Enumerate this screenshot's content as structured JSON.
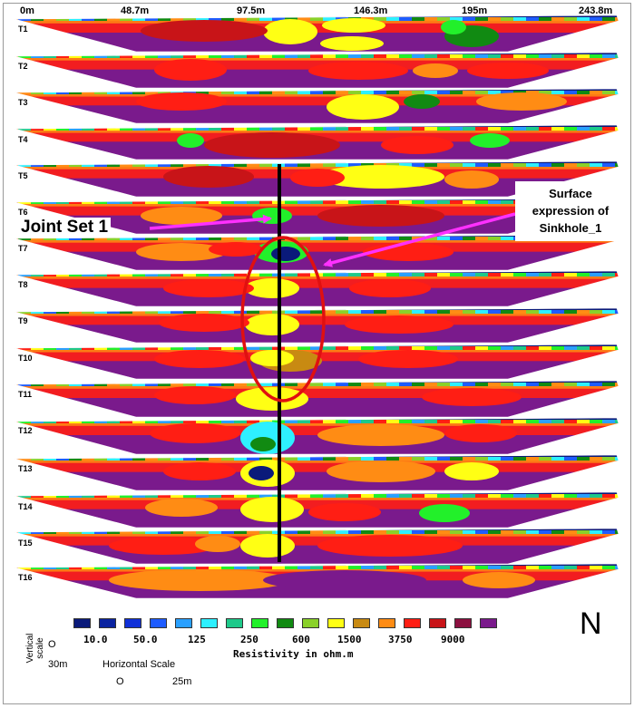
{
  "distance_labels": [
    "0m",
    "48.7m",
    "97.5m",
    "146.3m",
    "195m",
    "243.8m"
  ],
  "profiles": [
    "T1",
    "T2",
    "T3",
    "T4",
    "T5",
    "T6",
    "T7",
    "T8",
    "T9",
    "T10",
    "T11",
    "T12",
    "T13",
    "T14",
    "T15",
    "T16"
  ],
  "annotations": {
    "joint_set": "Joint Set 1",
    "sinkhole_line1": "Surface",
    "sinkhole_line2": "expression of",
    "sinkhole_line3": "Sinkhole_1"
  },
  "legend": {
    "title": "Resistivity in ohm.m",
    "values": [
      "10.0",
      "50.0",
      "125",
      "250",
      "600",
      "1500",
      "3750",
      "9000"
    ],
    "colors": [
      "#0a1a7a",
      "#0a23a0",
      "#1030d8",
      "#1e5cff",
      "#2aa0ff",
      "#2ef0ff",
      "#1ec98a",
      "#22f02a",
      "#118a12",
      "#8ad12a",
      "#ffff14",
      "#c88a12",
      "#ff8c14",
      "#ff1e14",
      "#c81418",
      "#8c1040",
      "#7a1a8c"
    ]
  },
  "vertical_scale": {
    "title": "Vertical scale",
    "top": "O",
    "bottom": "30m"
  },
  "horizontal_scale": {
    "title": "Horizontal Scale",
    "start": "O",
    "end": "25m"
  },
  "north": "N",
  "colors": {
    "line": "#000000",
    "ellipse": "#e01010",
    "arrow": "#ff30ff",
    "north_arrow": "#4a7ec0"
  }
}
